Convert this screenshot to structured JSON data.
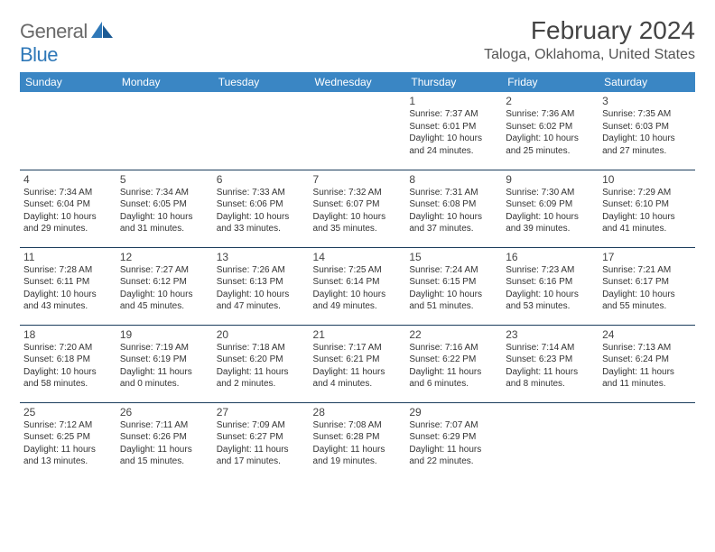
{
  "logo": {
    "word1": "General",
    "word2": "Blue"
  },
  "title": "February 2024",
  "location": "Taloga, Oklahoma, United States",
  "colors": {
    "header_bg": "#3a86c4",
    "header_text": "#ffffff",
    "row_border": "#1b3d5c",
    "shaded_bg": "#ededed",
    "text": "#333333",
    "logo_gray": "#6a6a6a",
    "logo_blue": "#2f78b8"
  },
  "daynames": [
    "Sunday",
    "Monday",
    "Tuesday",
    "Wednesday",
    "Thursday",
    "Friday",
    "Saturday"
  ],
  "weeks": [
    {
      "shaded": false,
      "days": [
        null,
        null,
        null,
        null,
        {
          "n": "1",
          "sr": "7:37 AM",
          "ss": "6:01 PM",
          "dl": "10 hours and 24 minutes."
        },
        {
          "n": "2",
          "sr": "7:36 AM",
          "ss": "6:02 PM",
          "dl": "10 hours and 25 minutes."
        },
        {
          "n": "3",
          "sr": "7:35 AM",
          "ss": "6:03 PM",
          "dl": "10 hours and 27 minutes."
        }
      ]
    },
    {
      "shaded": false,
      "days": [
        {
          "n": "4",
          "sr": "7:34 AM",
          "ss": "6:04 PM",
          "dl": "10 hours and 29 minutes."
        },
        {
          "n": "5",
          "sr": "7:34 AM",
          "ss": "6:05 PM",
          "dl": "10 hours and 31 minutes."
        },
        {
          "n": "6",
          "sr": "7:33 AM",
          "ss": "6:06 PM",
          "dl": "10 hours and 33 minutes."
        },
        {
          "n": "7",
          "sr": "7:32 AM",
          "ss": "6:07 PM",
          "dl": "10 hours and 35 minutes."
        },
        {
          "n": "8",
          "sr": "7:31 AM",
          "ss": "6:08 PM",
          "dl": "10 hours and 37 minutes."
        },
        {
          "n": "9",
          "sr": "7:30 AM",
          "ss": "6:09 PM",
          "dl": "10 hours and 39 minutes."
        },
        {
          "n": "10",
          "sr": "7:29 AM",
          "ss": "6:10 PM",
          "dl": "10 hours and 41 minutes."
        }
      ]
    },
    {
      "shaded": true,
      "days": [
        {
          "n": "11",
          "sr": "7:28 AM",
          "ss": "6:11 PM",
          "dl": "10 hours and 43 minutes."
        },
        {
          "n": "12",
          "sr": "7:27 AM",
          "ss": "6:12 PM",
          "dl": "10 hours and 45 minutes."
        },
        {
          "n": "13",
          "sr": "7:26 AM",
          "ss": "6:13 PM",
          "dl": "10 hours and 47 minutes."
        },
        {
          "n": "14",
          "sr": "7:25 AM",
          "ss": "6:14 PM",
          "dl": "10 hours and 49 minutes."
        },
        {
          "n": "15",
          "sr": "7:24 AM",
          "ss": "6:15 PM",
          "dl": "10 hours and 51 minutes."
        },
        {
          "n": "16",
          "sr": "7:23 AM",
          "ss": "6:16 PM",
          "dl": "10 hours and 53 minutes."
        },
        {
          "n": "17",
          "sr": "7:21 AM",
          "ss": "6:17 PM",
          "dl": "10 hours and 55 minutes."
        }
      ]
    },
    {
      "shaded": true,
      "days": [
        {
          "n": "18",
          "sr": "7:20 AM",
          "ss": "6:18 PM",
          "dl": "10 hours and 58 minutes."
        },
        {
          "n": "19",
          "sr": "7:19 AM",
          "ss": "6:19 PM",
          "dl": "11 hours and 0 minutes."
        },
        {
          "n": "20",
          "sr": "7:18 AM",
          "ss": "6:20 PM",
          "dl": "11 hours and 2 minutes."
        },
        {
          "n": "21",
          "sr": "7:17 AM",
          "ss": "6:21 PM",
          "dl": "11 hours and 4 minutes."
        },
        {
          "n": "22",
          "sr": "7:16 AM",
          "ss": "6:22 PM",
          "dl": "11 hours and 6 minutes."
        },
        {
          "n": "23",
          "sr": "7:14 AM",
          "ss": "6:23 PM",
          "dl": "11 hours and 8 minutes."
        },
        {
          "n": "24",
          "sr": "7:13 AM",
          "ss": "6:24 PM",
          "dl": "11 hours and 11 minutes."
        }
      ]
    },
    {
      "shaded": true,
      "days": [
        {
          "n": "25",
          "sr": "7:12 AM",
          "ss": "6:25 PM",
          "dl": "11 hours and 13 minutes."
        },
        {
          "n": "26",
          "sr": "7:11 AM",
          "ss": "6:26 PM",
          "dl": "11 hours and 15 minutes."
        },
        {
          "n": "27",
          "sr": "7:09 AM",
          "ss": "6:27 PM",
          "dl": "11 hours and 17 minutes."
        },
        {
          "n": "28",
          "sr": "7:08 AM",
          "ss": "6:28 PM",
          "dl": "11 hours and 19 minutes."
        },
        {
          "n": "29",
          "sr": "7:07 AM",
          "ss": "6:29 PM",
          "dl": "11 hours and 22 minutes."
        },
        null,
        null
      ]
    }
  ],
  "labels": {
    "sunrise": "Sunrise:",
    "sunset": "Sunset:",
    "daylight": "Daylight:"
  }
}
